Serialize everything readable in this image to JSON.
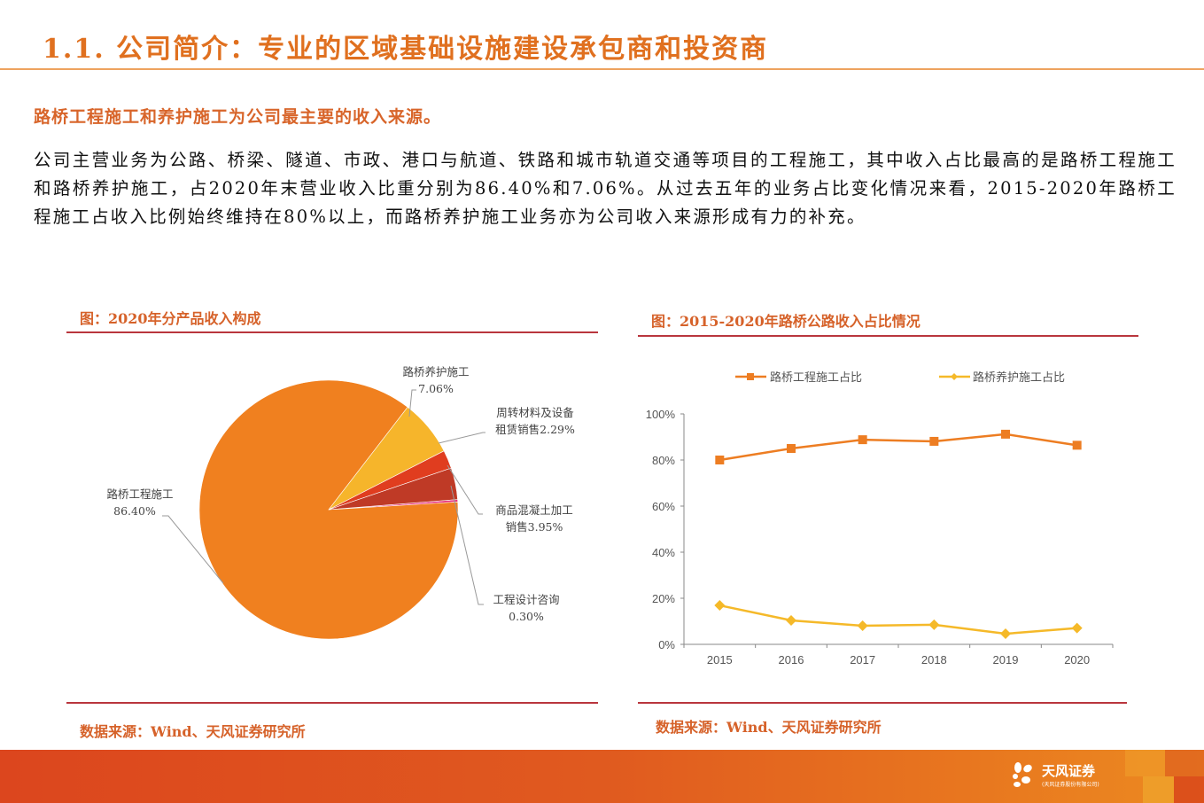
{
  "page": {
    "title": "1.1. 公司简介：专业的区域基础设施建设承包商和投资商",
    "subheading": "路桥工程施工和养护施工为公司最主要的收入来源。",
    "body": "公司主营业务为公路、桥梁、隧道、市政、港口与航道、铁路和城市轨道交通等项目的工程施工，其中收入占比最高的是路桥工程施工和路桥养护施工，占2020年末营业收入比重分别为86.40%和7.06%。从过去五年的业务占比变化情况来看，2015-2020年路桥工程施工占收入比例始终维持在80%以上，而路桥养护施工业务亦为公司收入来源形成有力的补充。"
  },
  "figure_left": {
    "title": "图：2020年分产品收入构成",
    "source": "数据来源：Wind、天风证券研究所",
    "labels": [
      {
        "name": "路桥工程施工",
        "value": "86.40%"
      },
      {
        "name": "路桥养护施工",
        "value": "7.06%"
      },
      {
        "name": "周转材料及设备",
        "value": "租赁销售2.29%"
      },
      {
        "name": "商品混凝土加工",
        "value": "销售3.95%"
      },
      {
        "name": "工程设计咨询",
        "value": "0.30%"
      }
    ]
  },
  "figure_right": {
    "title": "图：2015-2020年路桥公路收入占比情况",
    "source": "数据来源：Wind、天风证券研究所",
    "legend": [
      "路桥工程施工占比",
      "路桥养护施工占比"
    ],
    "y_ticks": [
      "100%",
      "80%",
      "60%",
      "40%",
      "20%",
      "0%"
    ],
    "x_ticks": [
      "2015",
      "2016",
      "2017",
      "2018",
      "2019",
      "2020"
    ]
  },
  "footer": {
    "logo_text": "天风证券",
    "logo_sub": "(天风证券股份有限公司)"
  },
  "colors": {
    "accent": "#e0701f",
    "series_main": "#ed7d22",
    "series_secondary": "#f5b929",
    "pie_main": "#f0801f",
    "pie_yellow": "#f6b52b",
    "pie_red": "#e03d1f",
    "pie_darkred": "#bf3a26",
    "pie_pink": "#e8307a"
  },
  "chart_data": [
    {
      "type": "pie",
      "title": "图：2020年分产品收入构成",
      "categories": [
        "路桥工程施工",
        "路桥养护施工",
        "周转材料及设备租赁销售",
        "商品混凝土加工销售",
        "工程设计咨询"
      ],
      "values": [
        86.4,
        7.06,
        2.29,
        3.95,
        0.3
      ],
      "unit": "%"
    },
    {
      "type": "line",
      "title": "图：2015-2020年路桥公路收入占比情况",
      "categories": [
        "2015",
        "2016",
        "2017",
        "2018",
        "2019",
        "2020"
      ],
      "series": [
        {
          "name": "路桥工程施工占比",
          "values": [
            80.0,
            85.0,
            88.8,
            88.1,
            91.2,
            86.4
          ],
          "marker": "square"
        },
        {
          "name": "路桥养护施工占比",
          "values": [
            16.9,
            10.4,
            8.1,
            8.5,
            4.6,
            7.06
          ],
          "marker": "diamond"
        }
      ],
      "xlabel": "",
      "ylabel": "",
      "ylim": [
        0,
        100
      ],
      "y_ticks": [
        "0%",
        "20%",
        "40%",
        "60%",
        "80%",
        "100%"
      ],
      "legend_position": "top",
      "grid": false
    }
  ]
}
